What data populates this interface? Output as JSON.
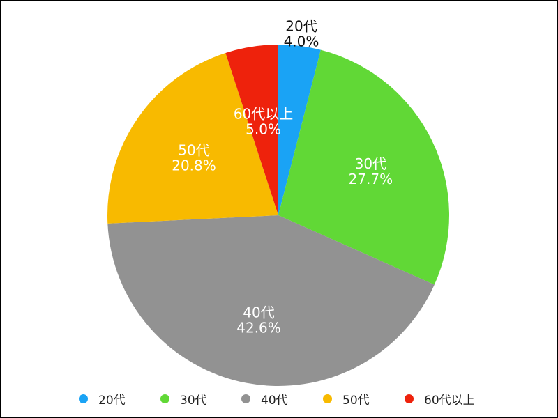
{
  "chart_data": {
    "type": "pie",
    "categories": [
      "20代",
      "30代",
      "40代",
      "50代",
      "60代以上"
    ],
    "values": [
      4.0,
      27.7,
      42.6,
      20.8,
      5.0
    ],
    "value_labels": [
      "4.0%",
      "27.7%",
      "42.6%",
      "20.8%",
      "5.0%"
    ],
    "colors": [
      "#1aa3f5",
      "#61d836",
      "#929292",
      "#f8ba00",
      "#ee220c"
    ],
    "label_colors": [
      "#111111",
      "#ffffff",
      "#ffffff",
      "#ffffff",
      "#ffffff"
    ],
    "start": "12 o'clock",
    "direction": "clockwise",
    "legend": "bottom",
    "title": ""
  }
}
